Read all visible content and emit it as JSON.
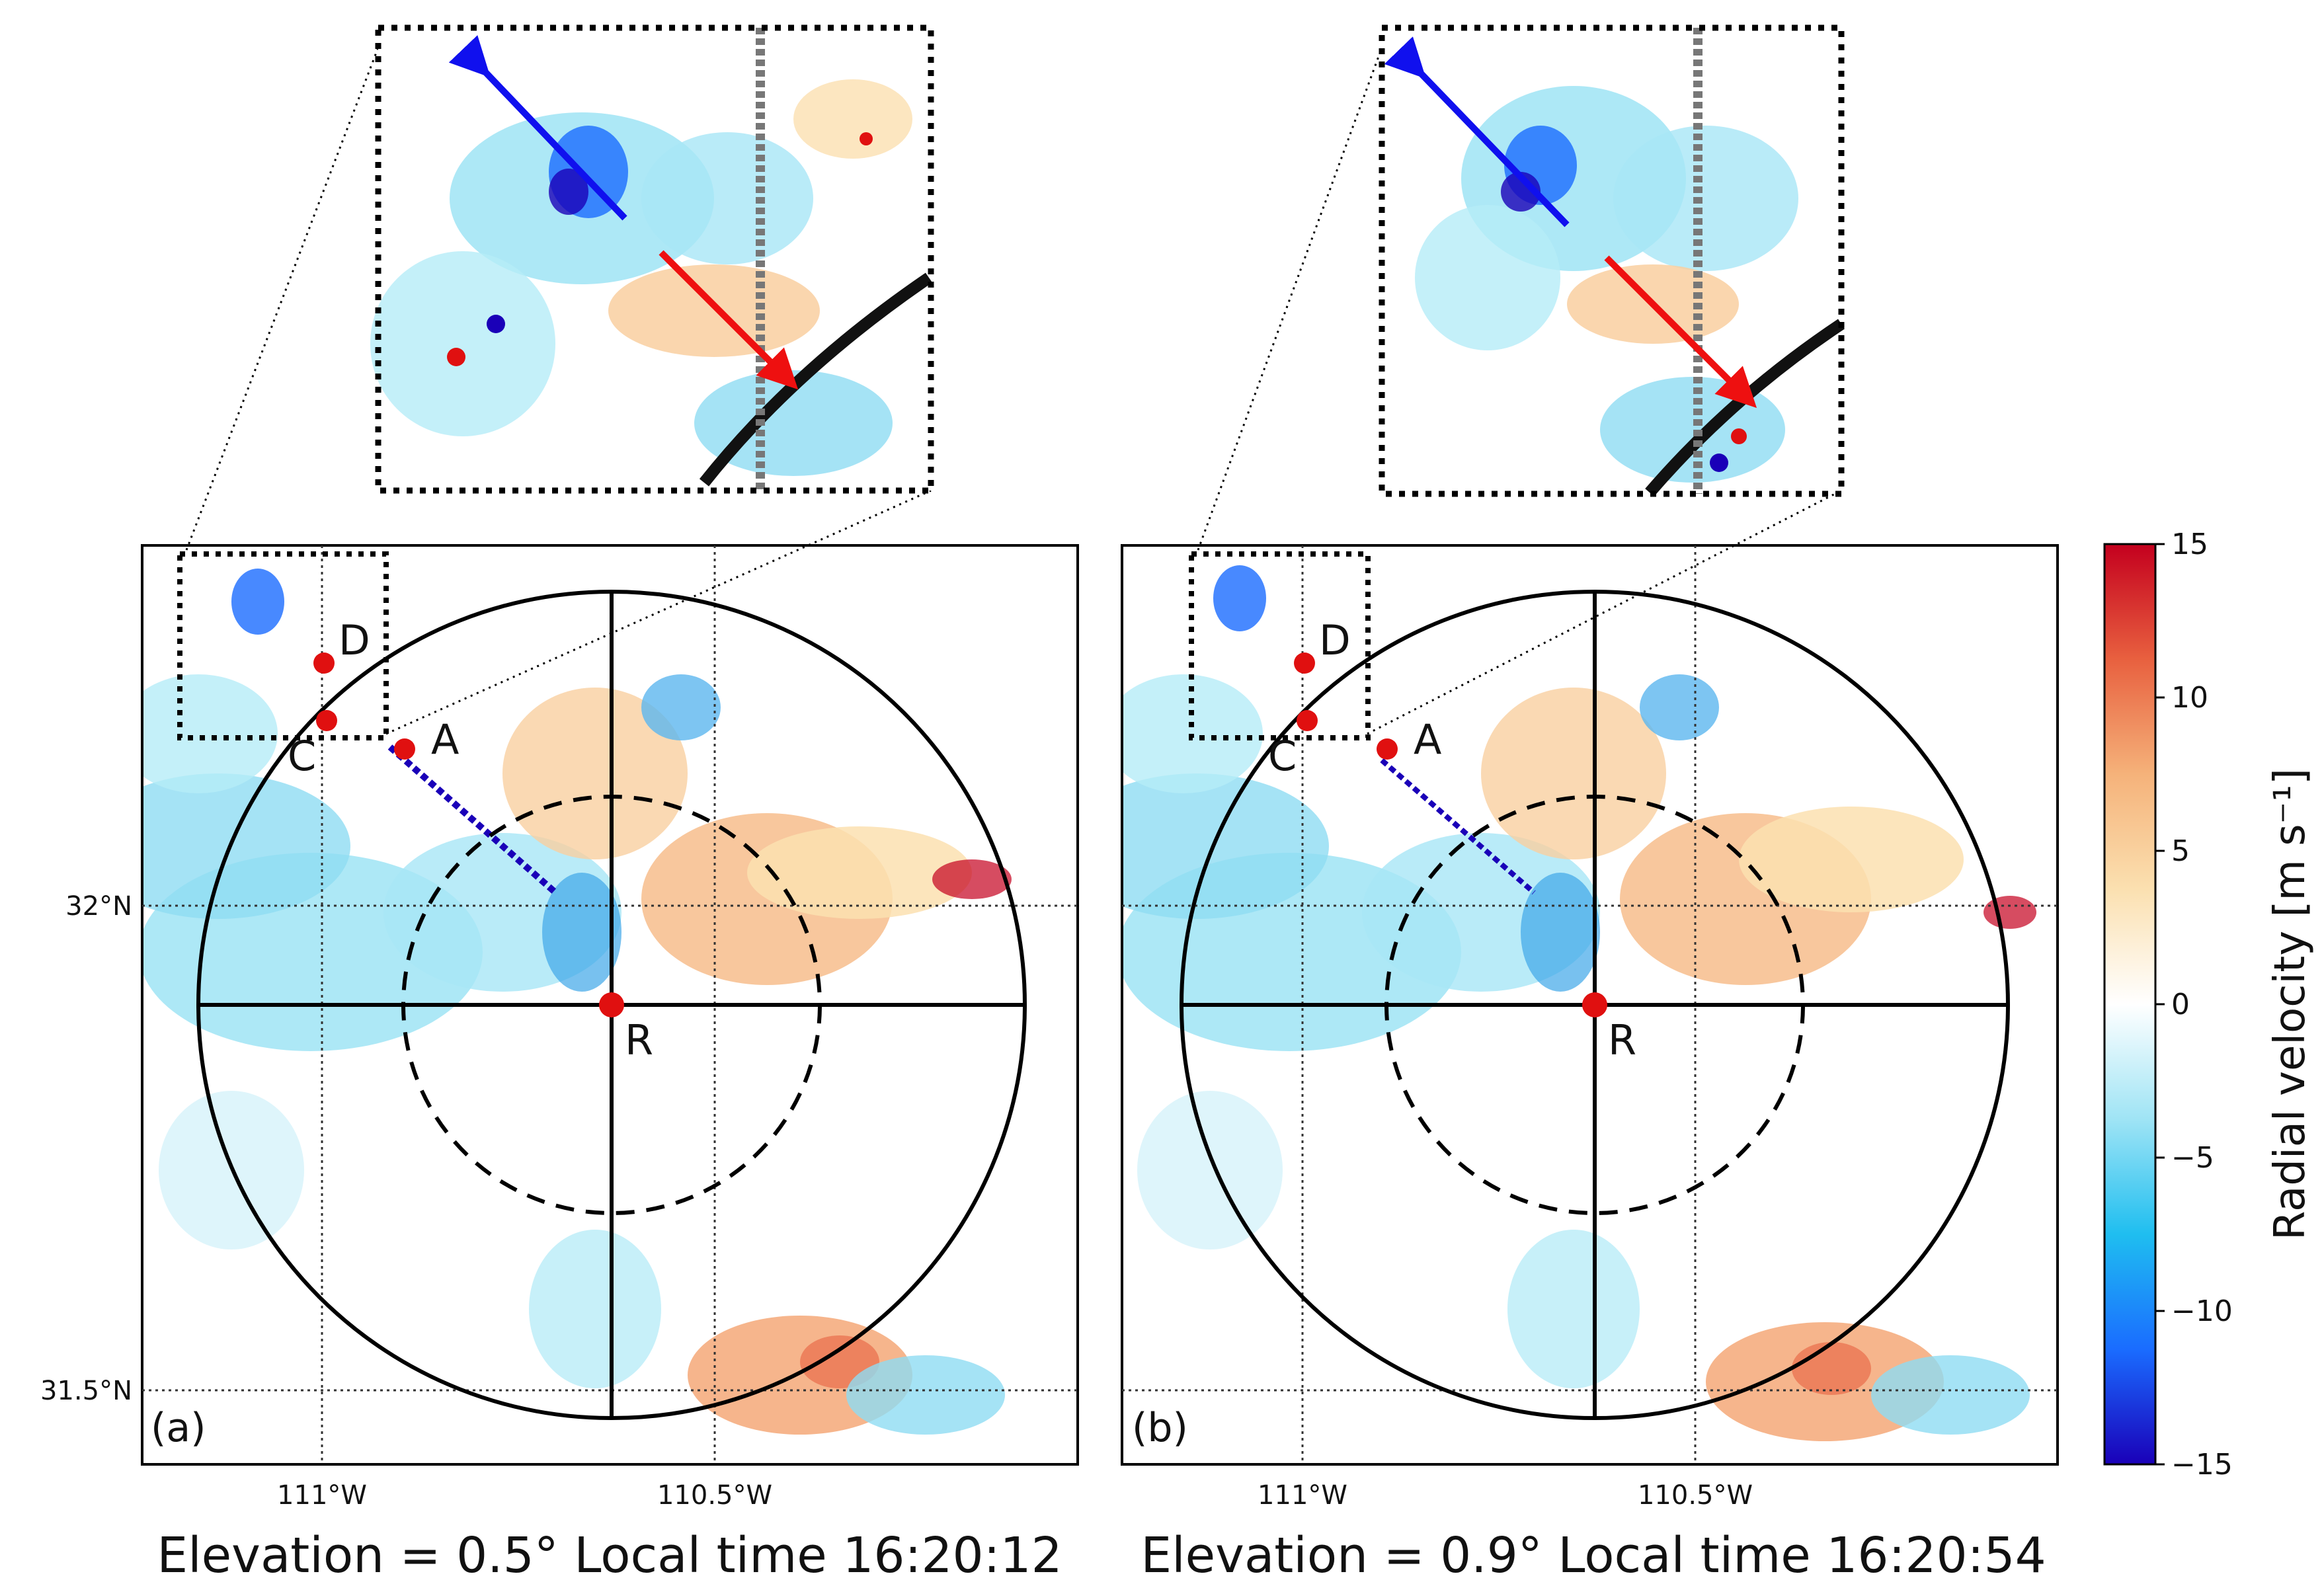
{
  "panels": [
    {
      "id": "a",
      "panel_label": "(a)",
      "caption": "Elevation = 0.5° Local time 16:20:12",
      "x_ticks": [
        "111°W",
        "110.5°W"
      ],
      "y_ticks": [
        "32°N",
        "31.5°N"
      ],
      "points": {
        "D": "D",
        "C": "C",
        "A": "A",
        "R": "R"
      }
    },
    {
      "id": "b",
      "panel_label": "(b)",
      "caption": "Elevation = 0.9° Local time 16:20:54",
      "x_ticks": [
        "111°W",
        "110.5°W"
      ],
      "y_ticks": [],
      "points": {
        "D": "D",
        "C": "C",
        "A": "A",
        "R": "R"
      }
    }
  ],
  "colorbar": {
    "title": "Radial velocity [m s⁻¹]",
    "ticks": [
      "15",
      "10",
      "5",
      "0",
      "−5",
      "−10",
      "−15"
    ],
    "tick_values": [
      15,
      10,
      5,
      0,
      -5,
      -10,
      -15
    ],
    "range": [
      -15,
      15
    ],
    "colormap": [
      "#1a00b8",
      "#1a6cff",
      "#1fbef0",
      "#9fe4f5",
      "#ffffff",
      "#fbe0b0",
      "#f5b27a",
      "#e8603f",
      "#c4001e"
    ]
  },
  "insets": [
    {
      "panel": "a",
      "arrows": [
        {
          "color": "#1010ee",
          "direction": "toward radar (negative)"
        },
        {
          "color": "#ee1010",
          "direction": "away from radar (positive)"
        }
      ]
    },
    {
      "panel": "b",
      "arrows": [
        {
          "color": "#1010ee",
          "direction": "toward radar (negative)"
        },
        {
          "color": "#ee1010",
          "direction": "away from radar (positive)"
        }
      ]
    }
  ]
}
